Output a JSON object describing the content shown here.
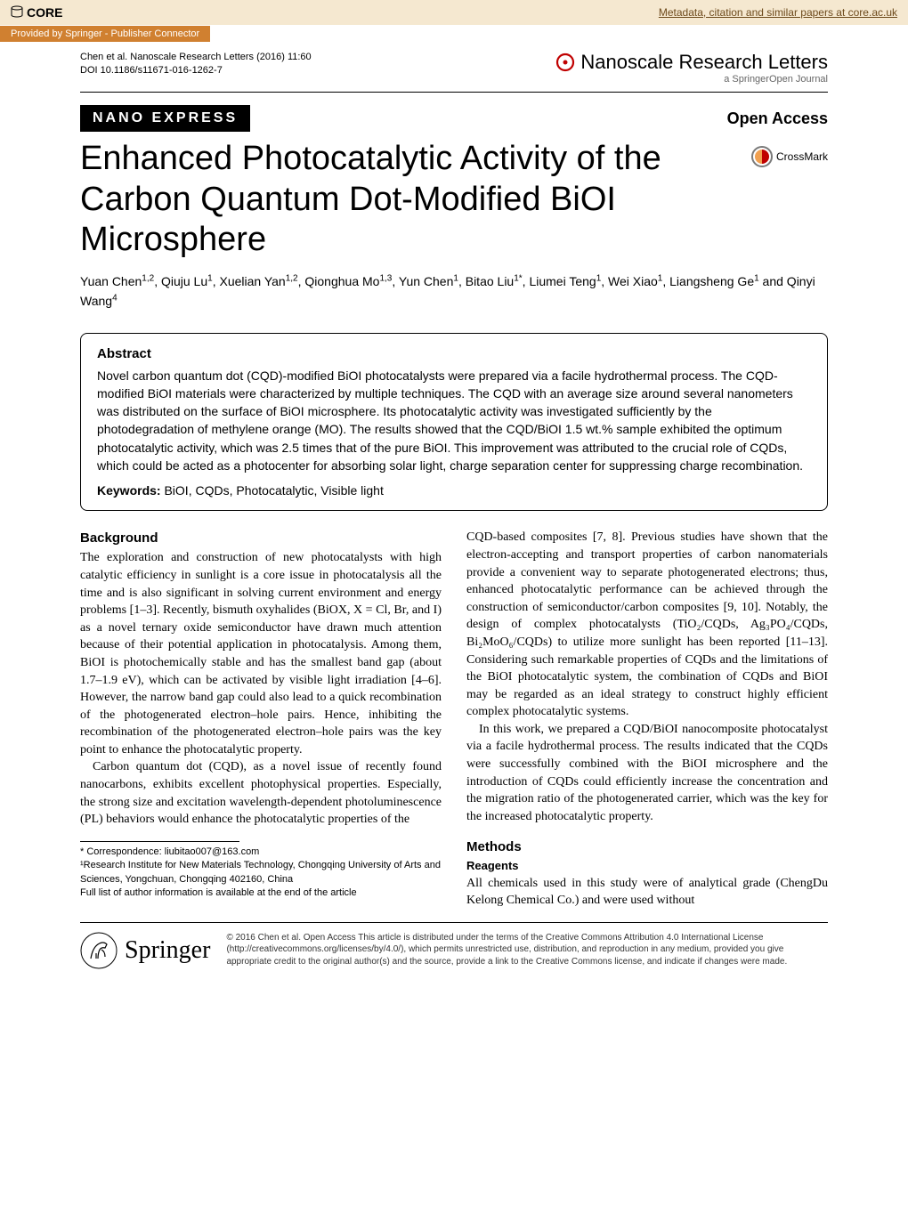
{
  "core": {
    "logo": "CORE",
    "link_text": "Metadata, citation and similar papers at core.ac.uk",
    "provided_by": "Provided by Springer - Publisher Connector"
  },
  "header": {
    "citation": "Chen et al. Nanoscale Research Letters  (2016) 11:60",
    "doi": "DOI 10.1186/s11671-016-1262-7",
    "journal": "Nanoscale Research Letters",
    "journal_sub": "a SpringerOpen Journal"
  },
  "category": {
    "label": "NANO EXPRESS",
    "open_access": "Open Access"
  },
  "title": "Enhanced Photocatalytic Activity of the Carbon Quantum Dot-Modified BiOI Microsphere",
  "crossmark": "CrossMark",
  "authors_html": "Yuan Chen<sup>1,2</sup>, Qiuju Lu<sup>1</sup>, Xuelian Yan<sup>1,2</sup>, Qionghua Mo<sup>1,3</sup>, Yun Chen<sup>1</sup>, Bitao Liu<sup>1*</sup>, Liumei Teng<sup>1</sup>, Wei Xiao<sup>1</sup>, Liangsheng Ge<sup>1</sup> and Qinyi Wang<sup>4</sup>",
  "abstract": {
    "heading": "Abstract",
    "text": "Novel carbon quantum dot (CQD)-modified BiOI photocatalysts were prepared via a facile hydrothermal process. The CQD-modified BiOI materials were characterized by multiple techniques. The CQD with an average size around several nanometers was distributed on the surface of BiOI microsphere. Its photocatalytic activity was investigated sufficiently by the photodegradation of methylene orange (MO). The results showed that the CQD/BiOI 1.5 wt.% sample exhibited the optimum photocatalytic activity, which was 2.5 times that of the pure BiOI. This improvement was attributed to the crucial role of CQDs, which could be acted as a photocenter for absorbing solar light, charge separation center for suppressing charge recombination.",
    "keywords_label": "Keywords:",
    "keywords": " BiOI, CQDs, Photocatalytic, Visible light"
  },
  "body": {
    "background_head": "Background",
    "p1": "The exploration and construction of new photocatalysts with high catalytic efficiency in sunlight is a core issue in photocatalysis all the time and is also significant in solving current environment and energy problems [1–3]. Recently, bismuth oxyhalides (BiOX, X = Cl, Br, and I) as a novel ternary oxide semiconductor have drawn much attention because of their potential application in photocatalysis. Among them, BiOI is photochemically stable and has the smallest band gap (about 1.7–1.9 eV), which can be activated by visible light irradiation [4–6]. However, the narrow band gap could also lead to a quick recombination of the photogenerated electron–hole pairs. Hence, inhibiting the recombination of the photogenerated electron–hole pairs was the key point to enhance the photocatalytic property.",
    "p2": "Carbon quantum dot (CQD), as a novel issue of recently found nanocarbons, exhibits excellent photophysical properties. Especially, the strong size and excitation wavelength-dependent photoluminescence (PL) behaviors would enhance the photocatalytic properties of the",
    "p3": "CQD-based composites [7, 8]. Previous studies have shown that the electron-accepting and transport properties of carbon nanomaterials provide a convenient way to separate photogenerated electrons; thus, enhanced photocatalytic performance can be achieved through the construction of semiconductor/carbon composites [9, 10]. Notably, the design of complex photocatalysts (TiO₂/CQDs, Ag₃PO₄/CQDs, Bi₂MoO₆/CQDs) to utilize more sunlight has been reported [11–13]. Considering such remarkable properties of CQDs and the limitations of the BiOI photocatalytic system, the combination of CQDs and BiOI may be regarded as an ideal strategy to construct highly efficient complex photocatalytic systems.",
    "p4": "In this work, we prepared a CQD/BiOI nanocomposite photocatalyst via a facile hydrothermal process. The results indicated that the CQDs were successfully combined with the BiOI microsphere and the introduction of CQDs could efficiently increase the concentration and the migration ratio of the photogenerated carrier, which was the key for the increased photocatalytic property.",
    "methods_head": "Methods",
    "reagents_head": "Reagents",
    "p5": "All chemicals used in this study were of analytical grade (ChengDu Kelong Chemical Co.) and were used without"
  },
  "footnotes": {
    "correspondence": "* Correspondence: liubitao007@163.com",
    "affil1": "¹Research Institute for New Materials Technology, Chongqing University of Arts and Sciences, Yongchuan, Chongqing 402160, China",
    "full_list": "Full list of author information is available at the end of the article"
  },
  "footer": {
    "springer": "Springer",
    "license": "© 2016 Chen et al. Open Access This article is distributed under the terms of the Creative Commons Attribution 4.0 International License (http://creativecommons.org/licenses/by/4.0/), which permits unrestricted use, distribution, and reproduction in any medium, provided you give appropriate credit to the original author(s) and the source, provide a link to the Creative Commons license, and indicate if changes were made."
  },
  "colors": {
    "core_bg": "#f5e8d0",
    "provided_bg": "#d08030",
    "red_accent": "#c00000"
  }
}
